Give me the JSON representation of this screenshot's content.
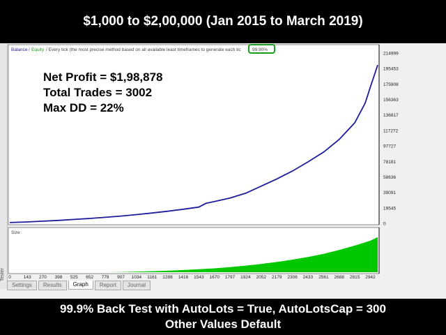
{
  "banner_top": "$1,000 to $2,00,000 (Jan 2015 to March 2019)",
  "banner_bottom_line1": "99.9% Back Test with AutoLots = True, AutoLotsCap = 300",
  "banner_bottom_line2": "Other Values Default",
  "side_label": "Tester",
  "legend": {
    "balance": "Balance",
    "sep": "/",
    "equity": "Equity",
    "desc": "/ Every tick (the most precise method based on all available least timeframes to generate each tic",
    "quality": "99.90%"
  },
  "stats": {
    "net_profit": "Net Profit = $1,98,878",
    "total_trades": "Total Trades = 3002",
    "max_dd": "Max DD = 22%"
  },
  "volume_label": "Size",
  "tabs": [
    "Settings",
    "Results",
    "Graph",
    "Report",
    "Journal"
  ],
  "active_tab": "Graph",
  "colors": {
    "balance_line": "#1c1c9c",
    "size_bars": "#00c800",
    "quality_box": "#1a9e1a"
  },
  "chart_data": {
    "type": "line",
    "xlabel": "",
    "ylabel": "",
    "x_ticks": [
      0,
      143,
      270,
      398,
      525,
      652,
      779,
      907,
      1034,
      1161,
      1288,
      1416,
      1543,
      1670,
      1797,
      1924,
      2052,
      2179,
      2306,
      2433,
      2561,
      2688,
      2815,
      2942
    ],
    "y_ticks": [
      0,
      19545,
      39091,
      58636,
      78181,
      97727,
      117272,
      136817,
      156363,
      175908,
      195453,
      214999
    ],
    "xlim": [
      0,
      3002
    ],
    "ylim": [
      0,
      214999
    ],
    "series": [
      {
        "name": "Balance",
        "x": [
          0,
          143,
          270,
          398,
          525,
          652,
          779,
          907,
          1034,
          1161,
          1288,
          1416,
          1543,
          1600,
          1670,
          1797,
          1924,
          2052,
          2179,
          2306,
          2433,
          2561,
          2688,
          2815,
          2900,
          2942,
          3002
        ],
        "y": [
          1000,
          1800,
          2700,
          3700,
          4900,
          6200,
          7600,
          9200,
          11000,
          13000,
          15200,
          17800,
          20500,
          25200,
          27500,
          32000,
          38000,
          47000,
          56000,
          66000,
          77500,
          90000,
          106000,
          127000,
          152000,
          172000,
          199878
        ]
      }
    ],
    "volume": {
      "name": "Size",
      "x": [
        0,
        143,
        270,
        398,
        525,
        652,
        779,
        907,
        1034,
        1161,
        1288,
        1416,
        1543,
        1670,
        1797,
        1924,
        2052,
        2179,
        2306,
        2433,
        2561,
        2688,
        2815,
        2942,
        3002
      ],
      "y": [
        0,
        0,
        0,
        0,
        0,
        0,
        0,
        1,
        2,
        4,
        6,
        9,
        12,
        16,
        21,
        27,
        34,
        42,
        52,
        63,
        76,
        92,
        110,
        130,
        145
      ],
      "ymax": 150
    }
  }
}
